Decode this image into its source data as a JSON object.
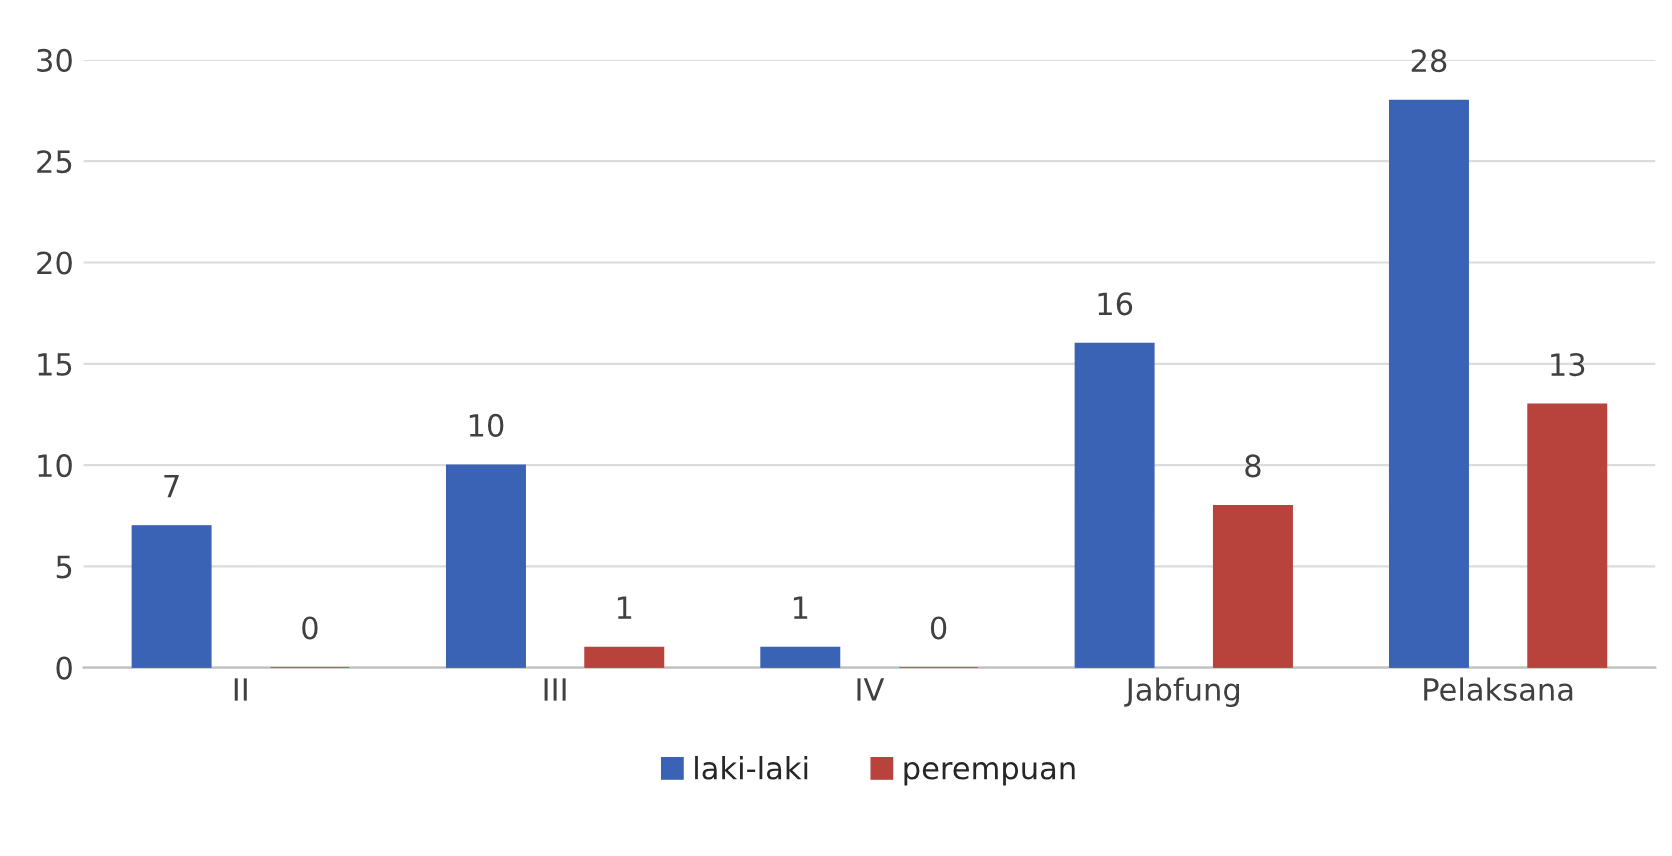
{
  "chart_data": {
    "type": "bar",
    "categories": [
      "II",
      "III",
      "IV",
      "Jabfung",
      "Pelaksana"
    ],
    "series": [
      {
        "name": "laki-laki",
        "color": "#3a62b5",
        "values": [
          7,
          10,
          1,
          16,
          28
        ]
      },
      {
        "name": "perempuan",
        "color": "#b8423c",
        "values": [
          0,
          1,
          0,
          8,
          13
        ]
      }
    ],
    "ylim": [
      0,
      30
    ],
    "yticks": [
      0,
      5,
      10,
      15,
      20,
      25,
      30
    ],
    "grid": "y",
    "legend": "bottom",
    "data_labels": true
  }
}
